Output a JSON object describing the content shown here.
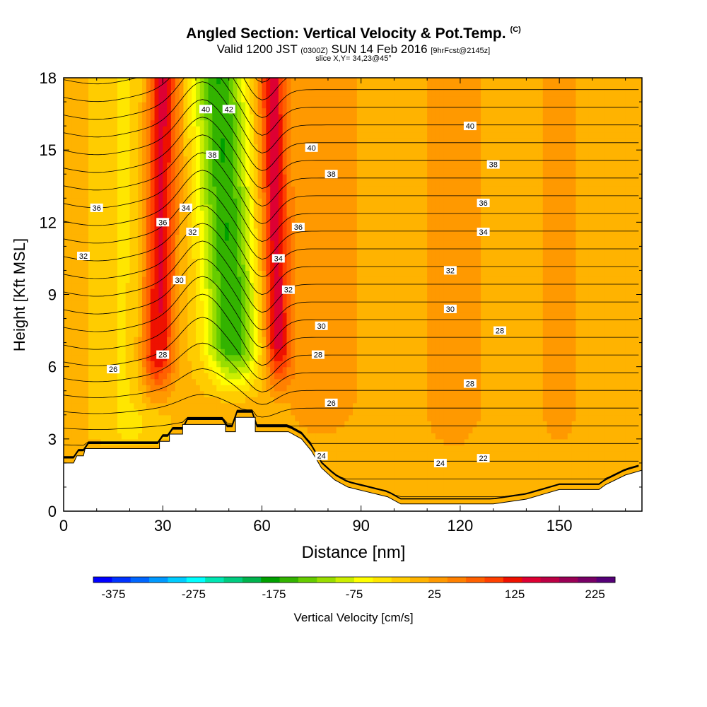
{
  "title": "Angled Section: Vertical Velocity & Pot.Temp.",
  "title_mark": "(C)",
  "subtitle_main": "Valid 1200 JST",
  "subtitle_utc": "(0300Z)",
  "subtitle_date": "SUN 14 Feb 2016",
  "subtitle_fcst": "[9hrFcst@2145z]",
  "slice_label": "slice X,Y= 34,23@45°",
  "chart_data": {
    "type": "heatmap",
    "title": "Angled Section: Vertical Velocity & Pot.Temp.",
    "xlabel": "Distance [nm]",
    "ylabel": "Height [Kft MSL]",
    "xlim": [
      0,
      175
    ],
    "ylim": [
      0,
      18
    ],
    "x_ticks": [
      0,
      30,
      60,
      90,
      120,
      150
    ],
    "y_ticks": [
      0,
      3,
      6,
      9,
      12,
      15,
      18
    ],
    "colorbar": {
      "label": "Vertical Velocity [cm/s]",
      "tick_values": [
        -375,
        -275,
        -175,
        -75,
        25,
        125,
        225
      ],
      "tick_labels": [
        "-375",
        "-275",
        "-175",
        "-75",
        "25",
        "125",
        "225"
      ],
      "range": [
        -400,
        250
      ],
      "colors": [
        "#0000ff",
        "#0033ff",
        "#0066ff",
        "#0099ff",
        "#00ccff",
        "#00ffff",
        "#00e6b3",
        "#00cc80",
        "#00b34d",
        "#00a000",
        "#33b300",
        "#66cc00",
        "#99dd00",
        "#ccee00",
        "#ffff00",
        "#ffe600",
        "#ffcc00",
        "#ffb300",
        "#ff9900",
        "#ff8000",
        "#ff6000",
        "#ff4000",
        "#ee1100",
        "#dd0033",
        "#bb0044",
        "#990055",
        "#770066",
        "#550077"
      ]
    },
    "terrain": [
      [
        0,
        2
      ],
      [
        3,
        2
      ],
      [
        4,
        2.3
      ],
      [
        6,
        2.3
      ],
      [
        6.5,
        2.6
      ],
      [
        29,
        2.6
      ],
      [
        29,
        2.9
      ],
      [
        32,
        2.9
      ],
      [
        32,
        3.2
      ],
      [
        36,
        3.2
      ],
      [
        36,
        3.6
      ],
      [
        49,
        3.6
      ],
      [
        49,
        3.3
      ],
      [
        52,
        3.3
      ],
      [
        52,
        3.9
      ],
      [
        58,
        3.9
      ],
      [
        58,
        3.3
      ],
      [
        68,
        3.3
      ],
      [
        72,
        3.0
      ],
      [
        75,
        2.5
      ],
      [
        78,
        1.8
      ],
      [
        82,
        1.3
      ],
      [
        86,
        1.0
      ],
      [
        92,
        0.8
      ],
      [
        98,
        0.6
      ],
      [
        102,
        0.3
      ],
      [
        108,
        0.3
      ],
      [
        118,
        0.3
      ],
      [
        130,
        0.3
      ],
      [
        140,
        0.5
      ],
      [
        145,
        0.7
      ],
      [
        150,
        0.9
      ],
      [
        162,
        0.9
      ],
      [
        164,
        1.1
      ],
      [
        170,
        1.5
      ],
      [
        175,
        1.7
      ]
    ],
    "velocity_features": [
      {
        "x": 30,
        "x_bottom": 28,
        "half_width": 5,
        "y_min": 4.0,
        "y_max": 18,
        "w": 150
      },
      {
        "x": 47,
        "x_bottom": 52,
        "half_width": 8,
        "y_min": 4.5,
        "y_max": 18,
        "w": -170
      },
      {
        "x": 63,
        "x_bottom": 65,
        "half_width": 4,
        "y_min": 4.5,
        "y_max": 18,
        "w": 140
      },
      {
        "x": 78,
        "x_bottom": 78,
        "half_width": 12,
        "y_min": 2.0,
        "y_max": 18,
        "w": 35
      },
      {
        "x": 118,
        "x_bottom": 118,
        "half_width": 10,
        "y_min": 1.5,
        "y_max": 16,
        "w": 30
      },
      {
        "x": 150,
        "x_bottom": 150,
        "half_width": 6,
        "y_min": 1.5,
        "y_max": 17,
        "w": 30
      },
      {
        "x": 20,
        "x_bottom": 20,
        "half_width": 10,
        "y_min": 2.6,
        "y_max": 6,
        "w": -35
      }
    ],
    "contour_labels": [
      {
        "text": "40",
        "x": 43,
        "y": 16.7
      },
      {
        "text": "42",
        "x": 50,
        "y": 16.7
      },
      {
        "text": "40",
        "x": 75,
        "y": 15.1
      },
      {
        "text": "40",
        "x": 123,
        "y": 16.0
      },
      {
        "text": "38",
        "x": 45,
        "y": 14.8
      },
      {
        "text": "38",
        "x": 81,
        "y": 14.0
      },
      {
        "text": "38",
        "x": 130,
        "y": 14.4
      },
      {
        "text": "36",
        "x": 10,
        "y": 12.6
      },
      {
        "text": "36",
        "x": 30,
        "y": 12.0
      },
      {
        "text": "36",
        "x": 71,
        "y": 11.8
      },
      {
        "text": "36",
        "x": 127,
        "y": 12.8
      },
      {
        "text": "34",
        "x": 37,
        "y": 12.6
      },
      {
        "text": "34",
        "x": 65,
        "y": 10.5
      },
      {
        "text": "34",
        "x": 127,
        "y": 11.6
      },
      {
        "text": "32",
        "x": 6,
        "y": 10.6
      },
      {
        "text": "32",
        "x": 39,
        "y": 11.6
      },
      {
        "text": "32",
        "x": 68,
        "y": 9.2
      },
      {
        "text": "32",
        "x": 117,
        "y": 10.0
      },
      {
        "text": "30",
        "x": 35,
        "y": 9.6
      },
      {
        "text": "30",
        "x": 78,
        "y": 7.7
      },
      {
        "text": "30",
        "x": 117,
        "y": 8.4
      },
      {
        "text": "28",
        "x": 30,
        "y": 6.5
      },
      {
        "text": "28",
        "x": 77,
        "y": 6.5
      },
      {
        "text": "28",
        "x": 132,
        "y": 7.5
      },
      {
        "text": "28",
        "x": 123,
        "y": 5.3
      },
      {
        "text": "26",
        "x": 15,
        "y": 5.9
      },
      {
        "text": "26",
        "x": 81,
        "y": 4.5
      },
      {
        "text": "24",
        "x": 78,
        "y": 2.3
      },
      {
        "text": "24",
        "x": 114,
        "y": 2.0
      },
      {
        "text": "22",
        "x": 127,
        "y": 2.2
      }
    ]
  },
  "x_axis_label": "Distance [nm]",
  "y_axis_label": "Height [Kft MSL]",
  "colorbar_label": "Vertical Velocity [cm/s]"
}
